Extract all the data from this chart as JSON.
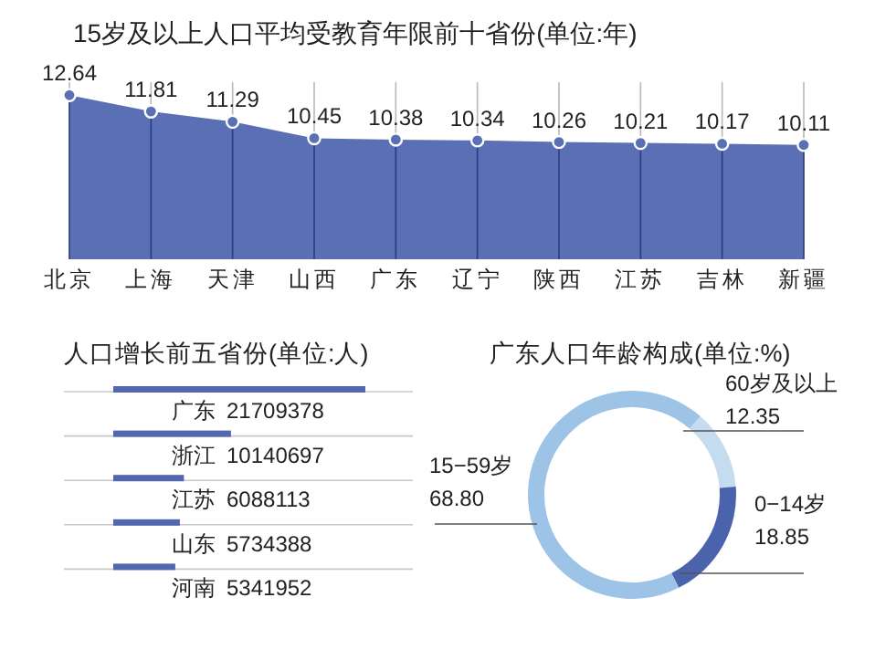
{
  "chart_data": [
    {
      "type": "area",
      "title": "15岁及以上人口平均受教育年限前十省份(单位:年)",
      "categories": [
        "北京",
        "上海",
        "天津",
        "山西",
        "广东",
        "辽宁",
        "陕西",
        "江苏",
        "吉林",
        "新疆"
      ],
      "series": [
        {
          "color": "#5a6fb4",
          "values": [
            12.64,
            11.81,
            11.29,
            10.45,
            10.38,
            10.34,
            10.26,
            10.21,
            10.17,
            10.11
          ]
        }
      ],
      "ylim": [
        4.3,
        13.3
      ],
      "data_labels": true,
      "marker": "circle",
      "grid": "x"
    },
    {
      "type": "bar",
      "orientation": "horizontal",
      "title": "人口增长前五省份(单位:人)",
      "categories": [
        "广东",
        "浙江",
        "江苏",
        "山东",
        "河南"
      ],
      "series": [
        {
          "color": "#5366b0",
          "values": [
            21709378,
            10140697,
            6088113,
            5734388,
            5341952
          ]
        }
      ],
      "data_labels": true
    },
    {
      "type": "donut",
      "title": "广东人口年龄构成(单位:%)",
      "categories": [
        "60岁及以上",
        "0−14岁",
        "15−59岁"
      ],
      "values": [
        12.35,
        18.85,
        68.8
      ],
      "value_labels": [
        "12.35",
        "18.85",
        "68.80"
      ],
      "colors": [
        "#c5dbef",
        "#4b63ad",
        "#9dc3e6"
      ]
    }
  ]
}
